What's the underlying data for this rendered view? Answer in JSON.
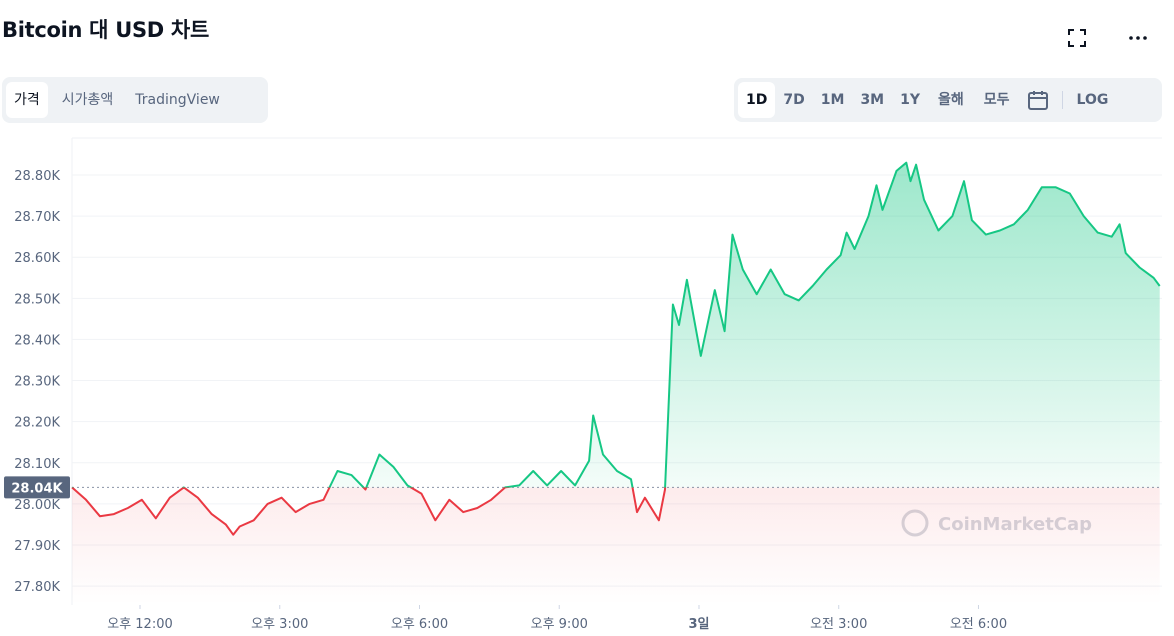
{
  "header": {
    "title": "Bitcoin 대 USD 차트"
  },
  "tabs": [
    "가격",
    "시가총액",
    "TradingView"
  ],
  "selected_tab": 0,
  "ranges": [
    "1D",
    "7D",
    "1M",
    "3M",
    "1Y",
    "올해",
    "모두"
  ],
  "selected_range": 0,
  "log_button": "LOG",
  "chart_data": {
    "type": "line",
    "watermark": "CoinMarketCap",
    "color": "#16c784",
    "down_color": "#ea3943",
    "reference": {
      "value": 28040,
      "label": "28.04K"
    },
    "x": [
      10.54,
      10.84,
      11.14,
      11.44,
      11.74,
      12.04,
      12.34,
      12.64,
      12.94,
      13.24,
      13.54,
      13.84,
      14.0,
      14.14,
      14.44,
      14.74,
      15.04,
      15.34,
      15.64,
      15.94,
      16.24,
      16.54,
      16.84,
      17.14,
      17.44,
      17.74,
      18.04,
      18.34,
      18.64,
      18.94,
      19.24,
      19.54,
      19.84,
      20.14,
      20.44,
      20.74,
      21.04,
      21.34,
      21.64,
      21.73,
      21.94,
      22.24,
      22.54,
      22.67,
      22.84,
      23.14,
      23.27,
      23.44,
      23.57,
      23.74,
      24.04,
      24.34,
      24.55,
      24.72,
      24.94,
      25.24,
      25.54,
      25.84,
      26.14,
      26.44,
      26.74,
      27.04,
      27.17,
      27.34,
      27.64,
      27.81,
      27.94,
      28.24,
      28.45,
      28.54,
      28.66,
      28.83,
      29.14,
      29.44,
      29.69,
      29.86,
      30.16,
      30.46,
      30.76,
      31.06,
      31.36,
      31.66,
      31.96,
      32.26,
      32.56,
      32.86,
      33.03,
      33.16,
      33.46,
      33.76,
      33.89
    ],
    "values": [
      28040,
      28010,
      27970,
      27975,
      27990,
      28010,
      27965,
      28015,
      28040,
      28015,
      27975,
      27950,
      27925,
      27945,
      27960,
      28000,
      28015,
      27980,
      28000,
      28010,
      28080,
      28070,
      28035,
      28120,
      28090,
      28045,
      28025,
      27960,
      28010,
      27980,
      27990,
      28010,
      28040,
      28045,
      28080,
      28045,
      28080,
      28045,
      28105,
      28215,
      28120,
      28080,
      28060,
      27980,
      28015,
      27960,
      28035,
      28485,
      28435,
      28545,
      28360,
      28520,
      28420,
      28655,
      28570,
      28510,
      28570,
      28510,
      28495,
      28530,
      28570,
      28605,
      28660,
      28620,
      28700,
      28775,
      28715,
      28810,
      28830,
      28785,
      28825,
      28740,
      28665,
      28700,
      28785,
      28690,
      28655,
      28665,
      28680,
      28715,
      28770,
      28770,
      28755,
      28700,
      28660,
      28650,
      28680,
      28610,
      28575,
      28550,
      28530
    ],
    "xlim": [
      10.54,
      33.94
    ],
    "xticks": [
      {
        "value": 12,
        "label": "오후 12:00"
      },
      {
        "value": 15,
        "label": "오후 3:00"
      },
      {
        "value": 18,
        "label": "오후 6:00"
      },
      {
        "value": 21,
        "label": "오후 9:00"
      },
      {
        "value": 24,
        "label": "3일"
      },
      {
        "value": 27,
        "label": "오전 3:00"
      },
      {
        "value": 30,
        "label": "오전 6:00"
      }
    ],
    "ylim": [
      27754,
      28890
    ],
    "yticks": [
      {
        "value": 27800,
        "label": "27.80K"
      },
      {
        "value": 27900,
        "label": "27.90K"
      },
      {
        "value": 28000,
        "label": "28.00K"
      },
      {
        "value": 28100,
        "label": "28.10K"
      },
      {
        "value": 28200,
        "label": "28.20K"
      },
      {
        "value": 28300,
        "label": "28.30K"
      },
      {
        "value": 28400,
        "label": "28.40K"
      },
      {
        "value": 28500,
        "label": "28.50K"
      },
      {
        "value": 28600,
        "label": "28.60K"
      },
      {
        "value": 28700,
        "label": "28.70K"
      },
      {
        "value": 28800,
        "label": "28.80K"
      }
    ],
    "grid": true
  }
}
